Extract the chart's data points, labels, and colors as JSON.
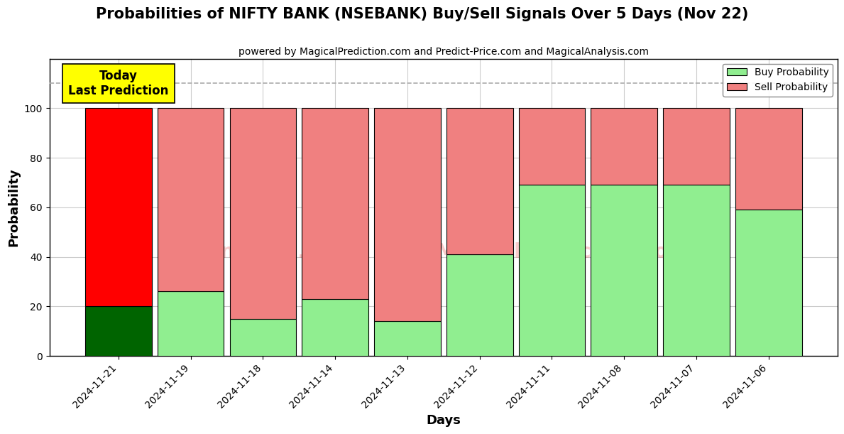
{
  "title": "Probabilities of NIFTY BANK (NSEBANK) Buy/Sell Signals Over 5 Days (Nov 22)",
  "subtitle": "powered by MagicalPrediction.com and Predict-Price.com and MagicalAnalysis.com",
  "xlabel": "Days",
  "ylabel": "Probability",
  "categories": [
    "2024-11-21",
    "2024-11-19",
    "2024-11-18",
    "2024-11-14",
    "2024-11-13",
    "2024-11-12",
    "2024-11-11",
    "2024-11-08",
    "2024-11-07",
    "2024-11-06"
  ],
  "buy_values": [
    20,
    26,
    15,
    23,
    14,
    41,
    69,
    69,
    69,
    59
  ],
  "sell_values": [
    80,
    74,
    85,
    77,
    86,
    59,
    31,
    31,
    31,
    41
  ],
  "today_bar_buy_color": "#006400",
  "today_bar_sell_color": "#ff0000",
  "other_bar_buy_color": "#90ee90",
  "other_bar_sell_color": "#f08080",
  "today_annotation_text": "Today\nLast Prediction",
  "today_annotation_bg": "#ffff00",
  "dashed_line_y": 110,
  "dashed_line_color": "#aaaaaa",
  "ylim": [
    0,
    120
  ],
  "yticks": [
    0,
    20,
    40,
    60,
    80,
    100
  ],
  "watermark1_text": "calAnalysis.com",
  "watermark2_text": "MagicalPrediction.com",
  "watermark_color": "#f08080",
  "watermark_alpha": 0.4,
  "legend_buy_color": "#90ee90",
  "legend_sell_color": "#f08080",
  "background_color": "#ffffff",
  "grid_color": "#cccccc",
  "bar_width": 0.92,
  "figsize": [
    12,
    6
  ],
  "dpi": 100
}
